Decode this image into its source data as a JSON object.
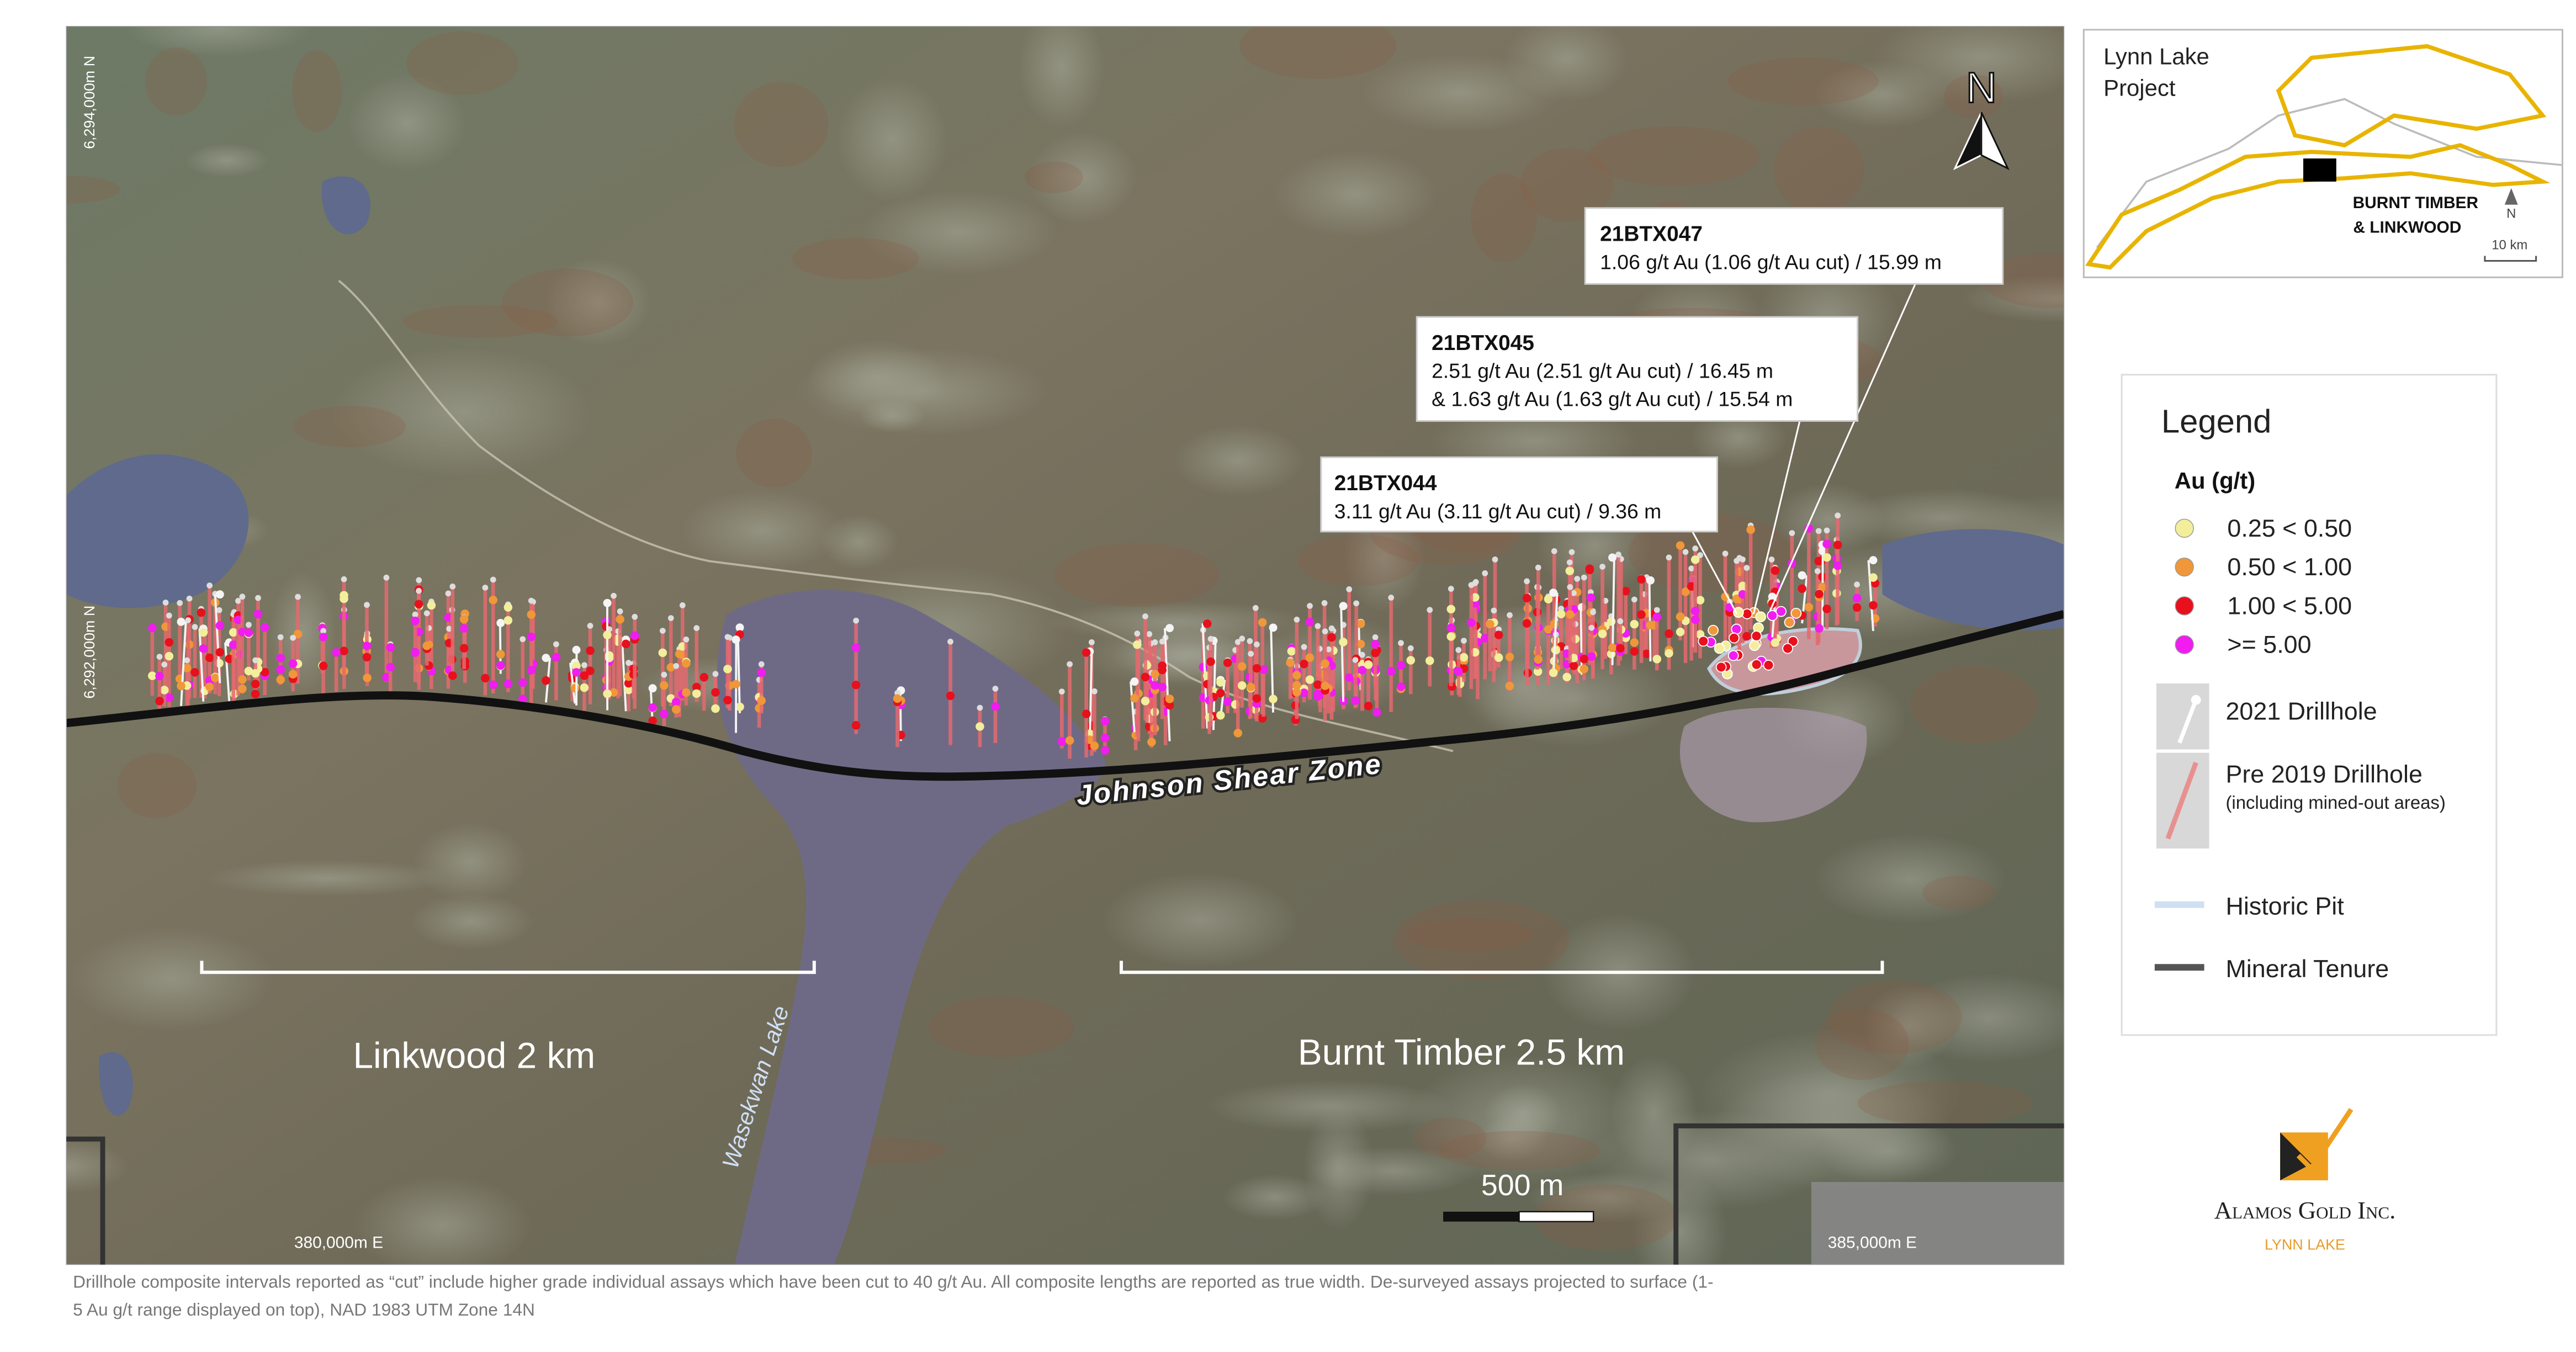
{
  "map": {
    "north_label": "N",
    "northings": [
      "6,294,000m N",
      "6,292,000m N"
    ],
    "eastings": [
      "380,000m E",
      "385,000m E"
    ],
    "shear_zone": "Johnson Shear Zone",
    "lake": "Wasekwan Lake",
    "sections": [
      "Linkwood 2 km",
      "Burnt Timber 2.5 km"
    ],
    "scale_bar": "500 m",
    "callouts": [
      {
        "hole": "21BTX047",
        "lines": [
          "1.06 g/t Au (1.06 g/t Au cut) / 15.99 m"
        ]
      },
      {
        "hole": "21BTX045",
        "lines": [
          "2.51 g/t Au (2.51 g/t Au cut) / 16.45 m",
          "& 1.63 g/t Au (1.63 g/t Au cut) / 15.54 m"
        ]
      },
      {
        "hole": "21BTX044",
        "lines": [
          "3.11 g/t Au (3.11 g/t Au cut) / 9.36 m"
        ]
      }
    ]
  },
  "inset": {
    "title": [
      "Lynn Lake",
      "Project"
    ],
    "label": [
      "BURNT TIMBER",
      "& LINKWOOD"
    ],
    "north": "N",
    "scale": "10 km"
  },
  "legend": {
    "title": "Legend",
    "subtitle": "Au (g/t)",
    "grades": [
      {
        "label": "0.25 < 0.50",
        "color": "#f2ee9c"
      },
      {
        "label": "0.50 < 1.00",
        "color": "#f0973a"
      },
      {
        "label": "1.00 < 5.00",
        "color": "#e8101c"
      },
      {
        "label": ">= 5.00",
        "color": "#f01cf0"
      }
    ],
    "drillholes": [
      {
        "label": "2021 Drillhole"
      },
      {
        "label": "Pre 2019 Drillhole",
        "note": "(including mined-out areas)"
      }
    ],
    "lines": [
      {
        "label": "Historic Pit",
        "color": "#cfe0f2"
      },
      {
        "label": "Mineral Tenure",
        "color": "#555555"
      }
    ]
  },
  "logo": {
    "name": "Alamos Gold Inc.",
    "sub": "LYNN LAKE"
  },
  "footnote": [
    "Drillhole composite intervals reported as “cut” include higher grade individual assays which have been cut to 40 g/t Au. All composite lengths are reported as true width. De-surveyed assays projected to surface (1-",
    "5 Au g/t range displayed on top), NAD 1983 UTM Zone 14N"
  ]
}
